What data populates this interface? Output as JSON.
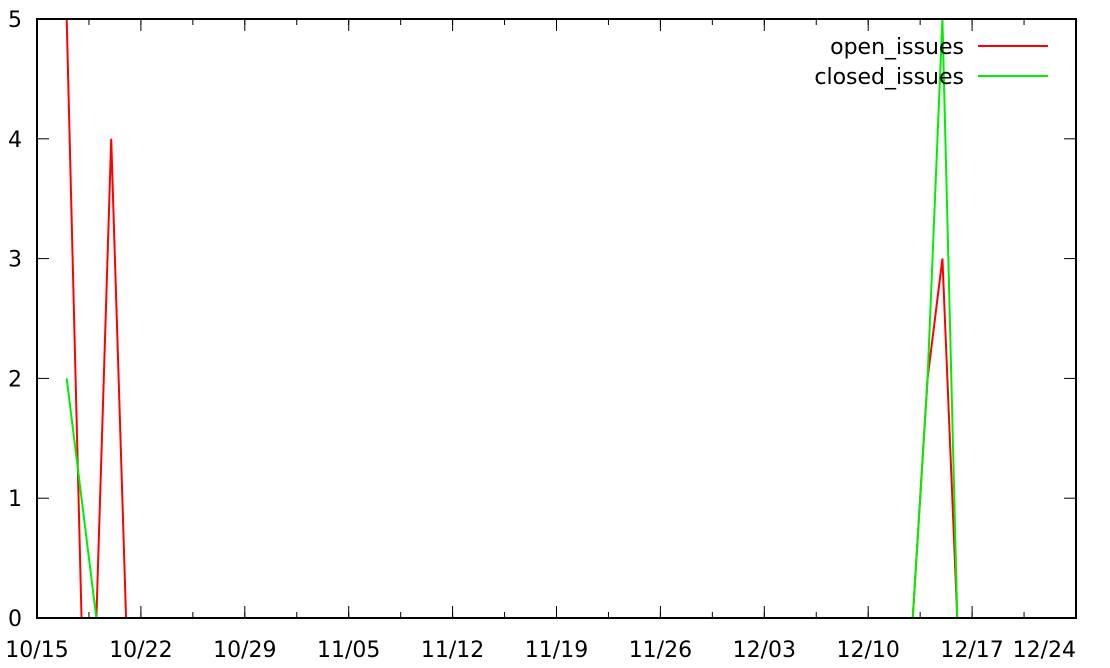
{
  "chart_data": {
    "type": "line",
    "x_tick_labels": [
      "10/15",
      "10/22",
      "10/29",
      "11/05",
      "11/12",
      "11/19",
      "11/26",
      "12/03",
      "12/10",
      "12/17",
      "12/24"
    ],
    "y_tick_labels": [
      "0",
      "1",
      "2",
      "3",
      "4",
      "5"
    ],
    "xlim": [
      "10/15",
      "12/24"
    ],
    "ylim": [
      0,
      5
    ],
    "grid": false,
    "legend_position": "top-right",
    "series": [
      {
        "name": "open_issues",
        "color": "#ff0000",
        "points": [
          {
            "x": "10/17",
            "y": 5
          },
          {
            "x": "10/18",
            "y": 0
          },
          {
            "x": "10/19",
            "y": 0
          },
          {
            "x": "10/20",
            "y": 4
          },
          {
            "x": "10/21",
            "y": 0
          },
          {
            "x": "12/13",
            "y": 0
          },
          {
            "x": "12/14",
            "y": 2
          },
          {
            "x": "12/15",
            "y": 3
          },
          {
            "x": "12/16",
            "y": 0
          }
        ]
      },
      {
        "name": "closed_issues",
        "color": "#00ee00",
        "points": [
          {
            "x": "10/17",
            "y": 2
          },
          {
            "x": "10/18",
            "y": 1
          },
          {
            "x": "10/19",
            "y": 0
          },
          {
            "x": "10/20",
            "y": 0
          },
          {
            "x": "10/21",
            "y": 0
          },
          {
            "x": "12/13",
            "y": 0
          },
          {
            "x": "12/14",
            "y": 2
          },
          {
            "x": "12/15",
            "y": 5
          },
          {
            "x": "12/16",
            "y": 0
          }
        ]
      }
    ]
  }
}
